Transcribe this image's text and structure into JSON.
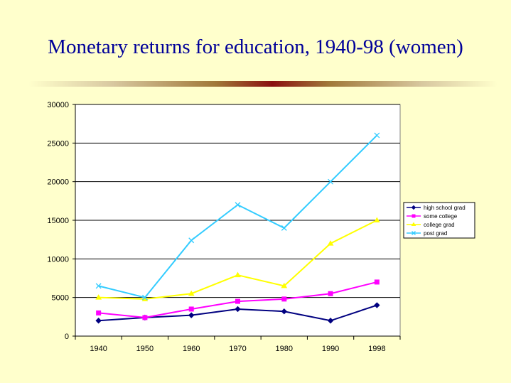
{
  "slide": {
    "title": "Monetary returns for education, 1940-98 (women)"
  },
  "chart_data": {
    "type": "line",
    "title": "",
    "xlabel": "",
    "ylabel": "",
    "categories": [
      "1940",
      "1950",
      "1960",
      "1970",
      "1980",
      "1990",
      "1998"
    ],
    "ylim": [
      0,
      30000
    ],
    "yticks": [
      "0",
      "5000",
      "10000",
      "15000",
      "20000",
      "25000",
      "30000"
    ],
    "grid": "horizontal",
    "legend_position": "right",
    "series": [
      {
        "name": "high school grad",
        "color": "#000080",
        "marker": "diamond",
        "values": [
          2000,
          2400,
          2700,
          3500,
          3200,
          2000,
          4000
        ]
      },
      {
        "name": "some college",
        "color": "#ff00ff",
        "marker": "square",
        "values": [
          3000,
          2400,
          3500,
          4500,
          4800,
          5500,
          7000
        ]
      },
      {
        "name": "college grad",
        "color": "#ffff00",
        "marker": "triangle",
        "values": [
          5000,
          4800,
          5500,
          7900,
          6500,
          12000,
          15000
        ]
      },
      {
        "name": "post grad",
        "color": "#33ccff",
        "marker": "x",
        "values": [
          6500,
          5000,
          12400,
          17000,
          14000,
          20000,
          26000
        ]
      }
    ]
  }
}
